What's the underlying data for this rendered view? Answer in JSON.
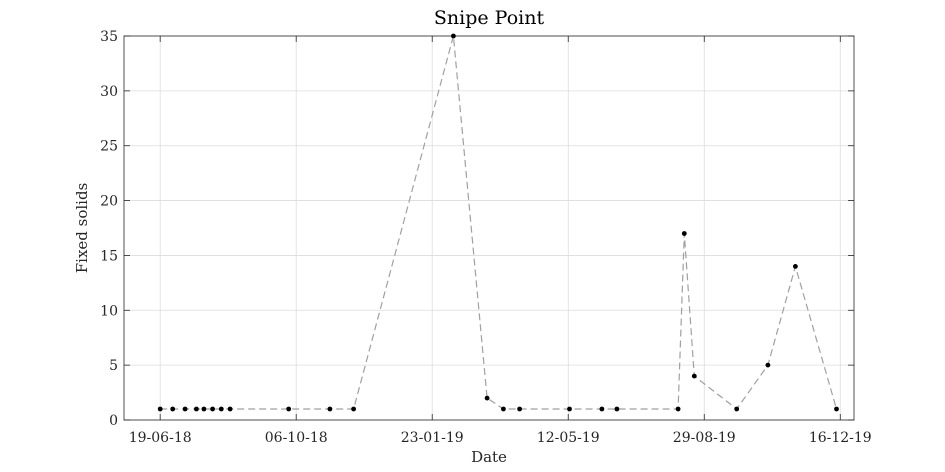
{
  "chart_data": {
    "type": "line",
    "title": "Snipe Point",
    "xlabel": "Date",
    "ylabel": "Fixed solids",
    "x_ticks": [
      "19-06-18",
      "06-10-18",
      "23-01-19",
      "12-05-19",
      "29-08-19",
      "16-12-19"
    ],
    "y_ticks": [
      0,
      5,
      10,
      15,
      20,
      25,
      30,
      35
    ],
    "xlim": [
      "2018-05-21",
      "2019-12-27"
    ],
    "ylim": [
      0,
      35
    ],
    "grid": true,
    "series": [
      {
        "line_color": "#a0a0a0",
        "marker_color": "#000000",
        "points": [
          {
            "x": "2018-06-19",
            "y": 1
          },
          {
            "x": "2018-06-29",
            "y": 1
          },
          {
            "x": "2018-07-09",
            "y": 1
          },
          {
            "x": "2018-07-18",
            "y": 1
          },
          {
            "x": "2018-07-24",
            "y": 1
          },
          {
            "x": "2018-07-31",
            "y": 1
          },
          {
            "x": "2018-08-07",
            "y": 1
          },
          {
            "x": "2018-08-14",
            "y": 1
          },
          {
            "x": "2018-09-30",
            "y": 1
          },
          {
            "x": "2018-11-02",
            "y": 1
          },
          {
            "x": "2018-11-21",
            "y": 1
          },
          {
            "x": "2019-02-09",
            "y": 35
          },
          {
            "x": "2019-03-08",
            "y": 2
          },
          {
            "x": "2019-03-21",
            "y": 1
          },
          {
            "x": "2019-04-03",
            "y": 1
          },
          {
            "x": "2019-05-13",
            "y": 1
          },
          {
            "x": "2019-06-08",
            "y": 1
          },
          {
            "x": "2019-06-20",
            "y": 1
          },
          {
            "x": "2019-08-08",
            "y": 1
          },
          {
            "x": "2019-08-13",
            "y": 17
          },
          {
            "x": "2019-08-21",
            "y": 4
          },
          {
            "x": "2019-09-24",
            "y": 1
          },
          {
            "x": "2019-10-19",
            "y": 5
          },
          {
            "x": "2019-11-10",
            "y": 14
          },
          {
            "x": "2019-12-13",
            "y": 1
          }
        ]
      }
    ]
  }
}
